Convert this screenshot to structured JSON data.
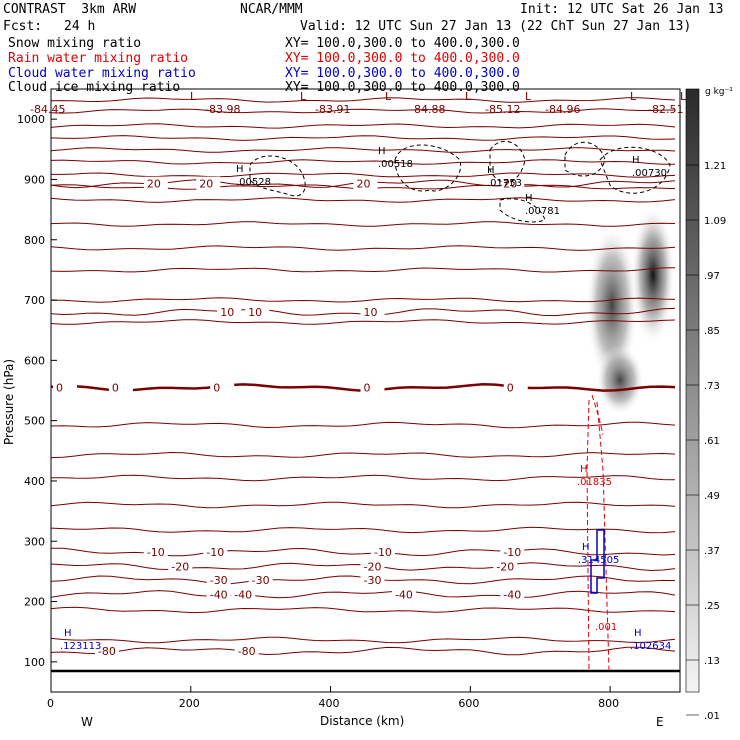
{
  "header": {
    "model": "CONTRAST  3km ARW",
    "center": "NCAR/MMM",
    "init": "Init: 12 UTC Sat 26 Jan 13",
    "fcst_label": "Fcst:",
    "fcst_value": "24 h",
    "valid": "Valid: 12 UTC Sun 27 Jan 13 (22 ChT Sun 27 Jan 13)"
  },
  "fields": [
    {
      "name": "Snow mixing ratio",
      "xy": "XY= 100.0,300.0 to 400.0,300.0",
      "color": "#000000"
    },
    {
      "name": "Rain water mixing ratio",
      "xy": "XY= 100.0,300.0 to 400.0,300.0",
      "color": "#e00000"
    },
    {
      "name": "Cloud water mixing ratio",
      "xy": "XY= 100.0,300.0 to 400.0,300.0",
      "color": "#0000c8"
    },
    {
      "name": "Cloud ice mixing ratio",
      "xy": "XY= 100.0,300.0 to 400.0,300.0",
      "color": "#000000"
    }
  ],
  "chart_data": {
    "type": "cross-section",
    "xlabel": "Distance (km)",
    "ylabel": "Pressure (hPa)",
    "xlim": [
      0,
      900
    ],
    "ylim": [
      1050,
      50
    ],
    "xticks": [
      "0",
      "200",
      "400",
      "600",
      "800"
    ],
    "xtick_values": [
      0,
      200,
      400,
      600,
      800
    ],
    "yticks": [
      "100",
      "200",
      "300",
      "400",
      "500",
      "600",
      "700",
      "800",
      "900",
      "1000"
    ],
    "ytick_values": [
      100,
      200,
      300,
      400,
      500,
      600,
      700,
      800,
      900,
      1000
    ],
    "west_label": "W",
    "east_label": "E",
    "colorbar": {
      "unit": "g kg⁻¹",
      "labels": [
        "1.21",
        "1.09",
        ".97",
        ".85",
        ".73",
        ".61",
        ".49",
        ".37",
        ".25",
        ".13",
        ".01"
      ],
      "values": [
        1.21,
        1.09,
        0.97,
        0.85,
        0.73,
        0.61,
        0.49,
        0.37,
        0.25,
        0.13,
        0.01
      ]
    },
    "temperature_contours": [
      {
        "level": -80,
        "pressure": 118,
        "label": "-80",
        "label_x": [
          80,
          280
        ]
      },
      {
        "level": -40,
        "pressure": 212,
        "label": "-40",
        "label_x": [
          240,
          275,
          505,
          660
        ]
      },
      {
        "level": -30,
        "pressure": 236,
        "label": "-30",
        "label_x": [
          240,
          300,
          460
        ]
      },
      {
        "level": -20,
        "pressure": 258,
        "label": "-20",
        "label_x": [
          185,
          460,
          650
        ]
      },
      {
        "level": -10,
        "pressure": 282,
        "label": "-10",
        "label_x": [
          150,
          235,
          475,
          660
        ]
      },
      {
        "level": 0,
        "pressure": 555,
        "label": "0",
        "label_x": [
          20,
          100,
          245,
          460,
          665
        ]
      },
      {
        "level": 10,
        "pressure": 680,
        "label": "10",
        "label_x": [
          255,
          295,
          460
        ]
      },
      {
        "level": 20,
        "pressure": 893,
        "label": "20",
        "label_x": [
          150,
          225,
          450,
          660
        ]
      }
    ],
    "min_temps": [
      "-84.45",
      "-83.98",
      "-83.91",
      "-84.88",
      "-85.12",
      "-84.96",
      "-82.51"
    ],
    "high_low_markers": [
      "L",
      "L",
      "L",
      "L",
      "L",
      "L",
      "L"
    ],
    "snow_maxima": [
      ".00528",
      ".00518",
      ".01753",
      ".00781",
      ".00730"
    ],
    "rain_max": ".01835",
    "rain_contour_label": ".001",
    "cloud_water_maxima": [
      ".123113",
      ".314505",
      ".102634"
    ]
  }
}
